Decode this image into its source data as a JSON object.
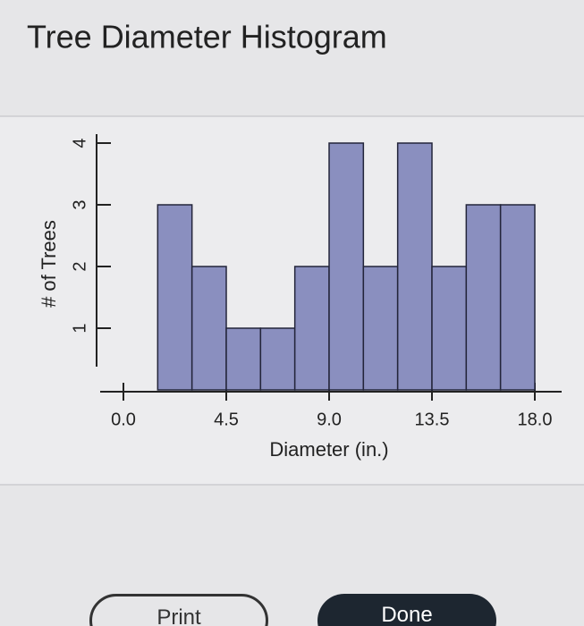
{
  "chart_data": {
    "type": "histogram",
    "title": "Tree Diameter Histogram",
    "x_label": "Diameter (in.)",
    "y_label": "# of Trees",
    "bins": [
      1.5,
      3,
      4.5,
      6,
      7.5,
      9,
      10.5,
      12,
      13.5,
      15,
      16.5,
      18
    ],
    "values": [
      3,
      2,
      1,
      1,
      2,
      4,
      2,
      4,
      2,
      3,
      3
    ],
    "color": "#8a8fbf",
    "xlim": [
      0,
      18
    ],
    "ylim": [
      0,
      4
    ],
    "xticks": [
      {
        "value": 0,
        "label": "0.0"
      },
      {
        "value": 4.5,
        "label": "4.5"
      },
      {
        "value": 9,
        "label": "9.0"
      },
      {
        "value": 13.5,
        "label": "13.5"
      },
      {
        "value": 18,
        "label": "18.0"
      }
    ],
    "yticks": [
      1,
      2,
      3,
      4
    ]
  },
  "buttons": [
    "Print",
    "Done"
  ]
}
